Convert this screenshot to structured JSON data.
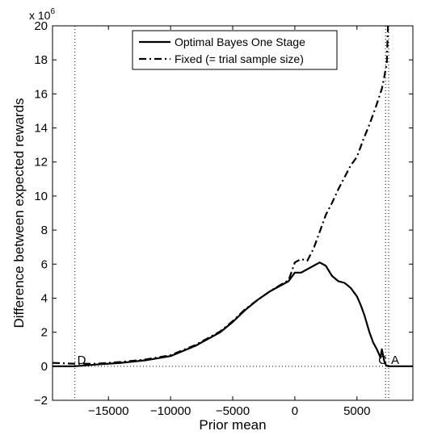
{
  "chart_data": {
    "type": "line",
    "xlabel": "Prior mean",
    "ylabel": "Difference between expected rewards",
    "y_multiplier_base": "x 10",
    "y_multiplier_exponent": "6",
    "xlim": [
      -19500,
      9500
    ],
    "ylim": [
      -2,
      20
    ],
    "x_ticks": [
      -15000,
      -10000,
      -5000,
      0,
      5000
    ],
    "x_tick_labels": [
      "−15000",
      "−10000",
      "−5000",
      "0",
      "5000"
    ],
    "y_ticks": [
      -2,
      0,
      2,
      4,
      6,
      8,
      10,
      12,
      14,
      16,
      18,
      20
    ],
    "y_tick_labels": [
      "−2",
      "0",
      "2",
      "4",
      "6",
      "8",
      "10",
      "12",
      "14",
      "16",
      "18",
      "20"
    ],
    "grid": false,
    "legend_position": "top-center",
    "series": [
      {
        "name": "Optimal Bayes One Stage",
        "style": "solid",
        "color": "#000000",
        "x": [
          -19500,
          -17700,
          -16000,
          -14000,
          -12000,
          -10000,
          -8000,
          -6000,
          -5000,
          -4000,
          -3000,
          -2000,
          -1000,
          -500,
          0,
          500,
          1000,
          1500,
          2000,
          2500,
          3000,
          3500,
          4000,
          4500,
          5000,
          5300,
          5600,
          6000,
          6300,
          6600,
          6900,
          7000,
          7200,
          7350,
          7500,
          9500
        ],
        "y": [
          0,
          0,
          0.1,
          0.2,
          0.35,
          0.6,
          1.2,
          2.0,
          2.6,
          3.3,
          3.9,
          4.4,
          4.8,
          5.0,
          5.5,
          5.5,
          5.7,
          5.9,
          6.1,
          5.9,
          5.3,
          5.0,
          4.9,
          4.6,
          4.1,
          3.6,
          3.0,
          2.0,
          1.4,
          1.0,
          0.5,
          1.0,
          0.3,
          0.05,
          0,
          0
        ]
      },
      {
        "name": "Fixed (= trial sample size)",
        "style": "dashdot",
        "color": "#000000",
        "x": [
          -19500,
          -17700,
          -16000,
          -14000,
          -12000,
          -10000,
          -8000,
          -6000,
          -5000,
          -4000,
          -3000,
          -2000,
          -1000,
          -500,
          0,
          500,
          1000,
          1500,
          2000,
          2500,
          3000,
          3500,
          4000,
          4500,
          5000,
          5500,
          6000,
          6500,
          7000,
          7200,
          7400,
          7500
        ],
        "y": [
          0.2,
          0.15,
          0.15,
          0.25,
          0.4,
          0.65,
          1.25,
          2.05,
          2.65,
          3.35,
          3.9,
          4.4,
          4.85,
          5.05,
          6.1,
          6.3,
          6.2,
          6.9,
          7.9,
          8.9,
          9.6,
          10.4,
          11.1,
          11.8,
          12.3,
          13.3,
          14.2,
          15.2,
          16.3,
          17.0,
          17.8,
          20.0
        ]
      }
    ],
    "vertical_reference_lines": [
      {
        "x": -17700,
        "label": "D"
      },
      {
        "x": 7300,
        "label": "C"
      },
      {
        "x": 7550,
        "label": "A"
      }
    ]
  }
}
